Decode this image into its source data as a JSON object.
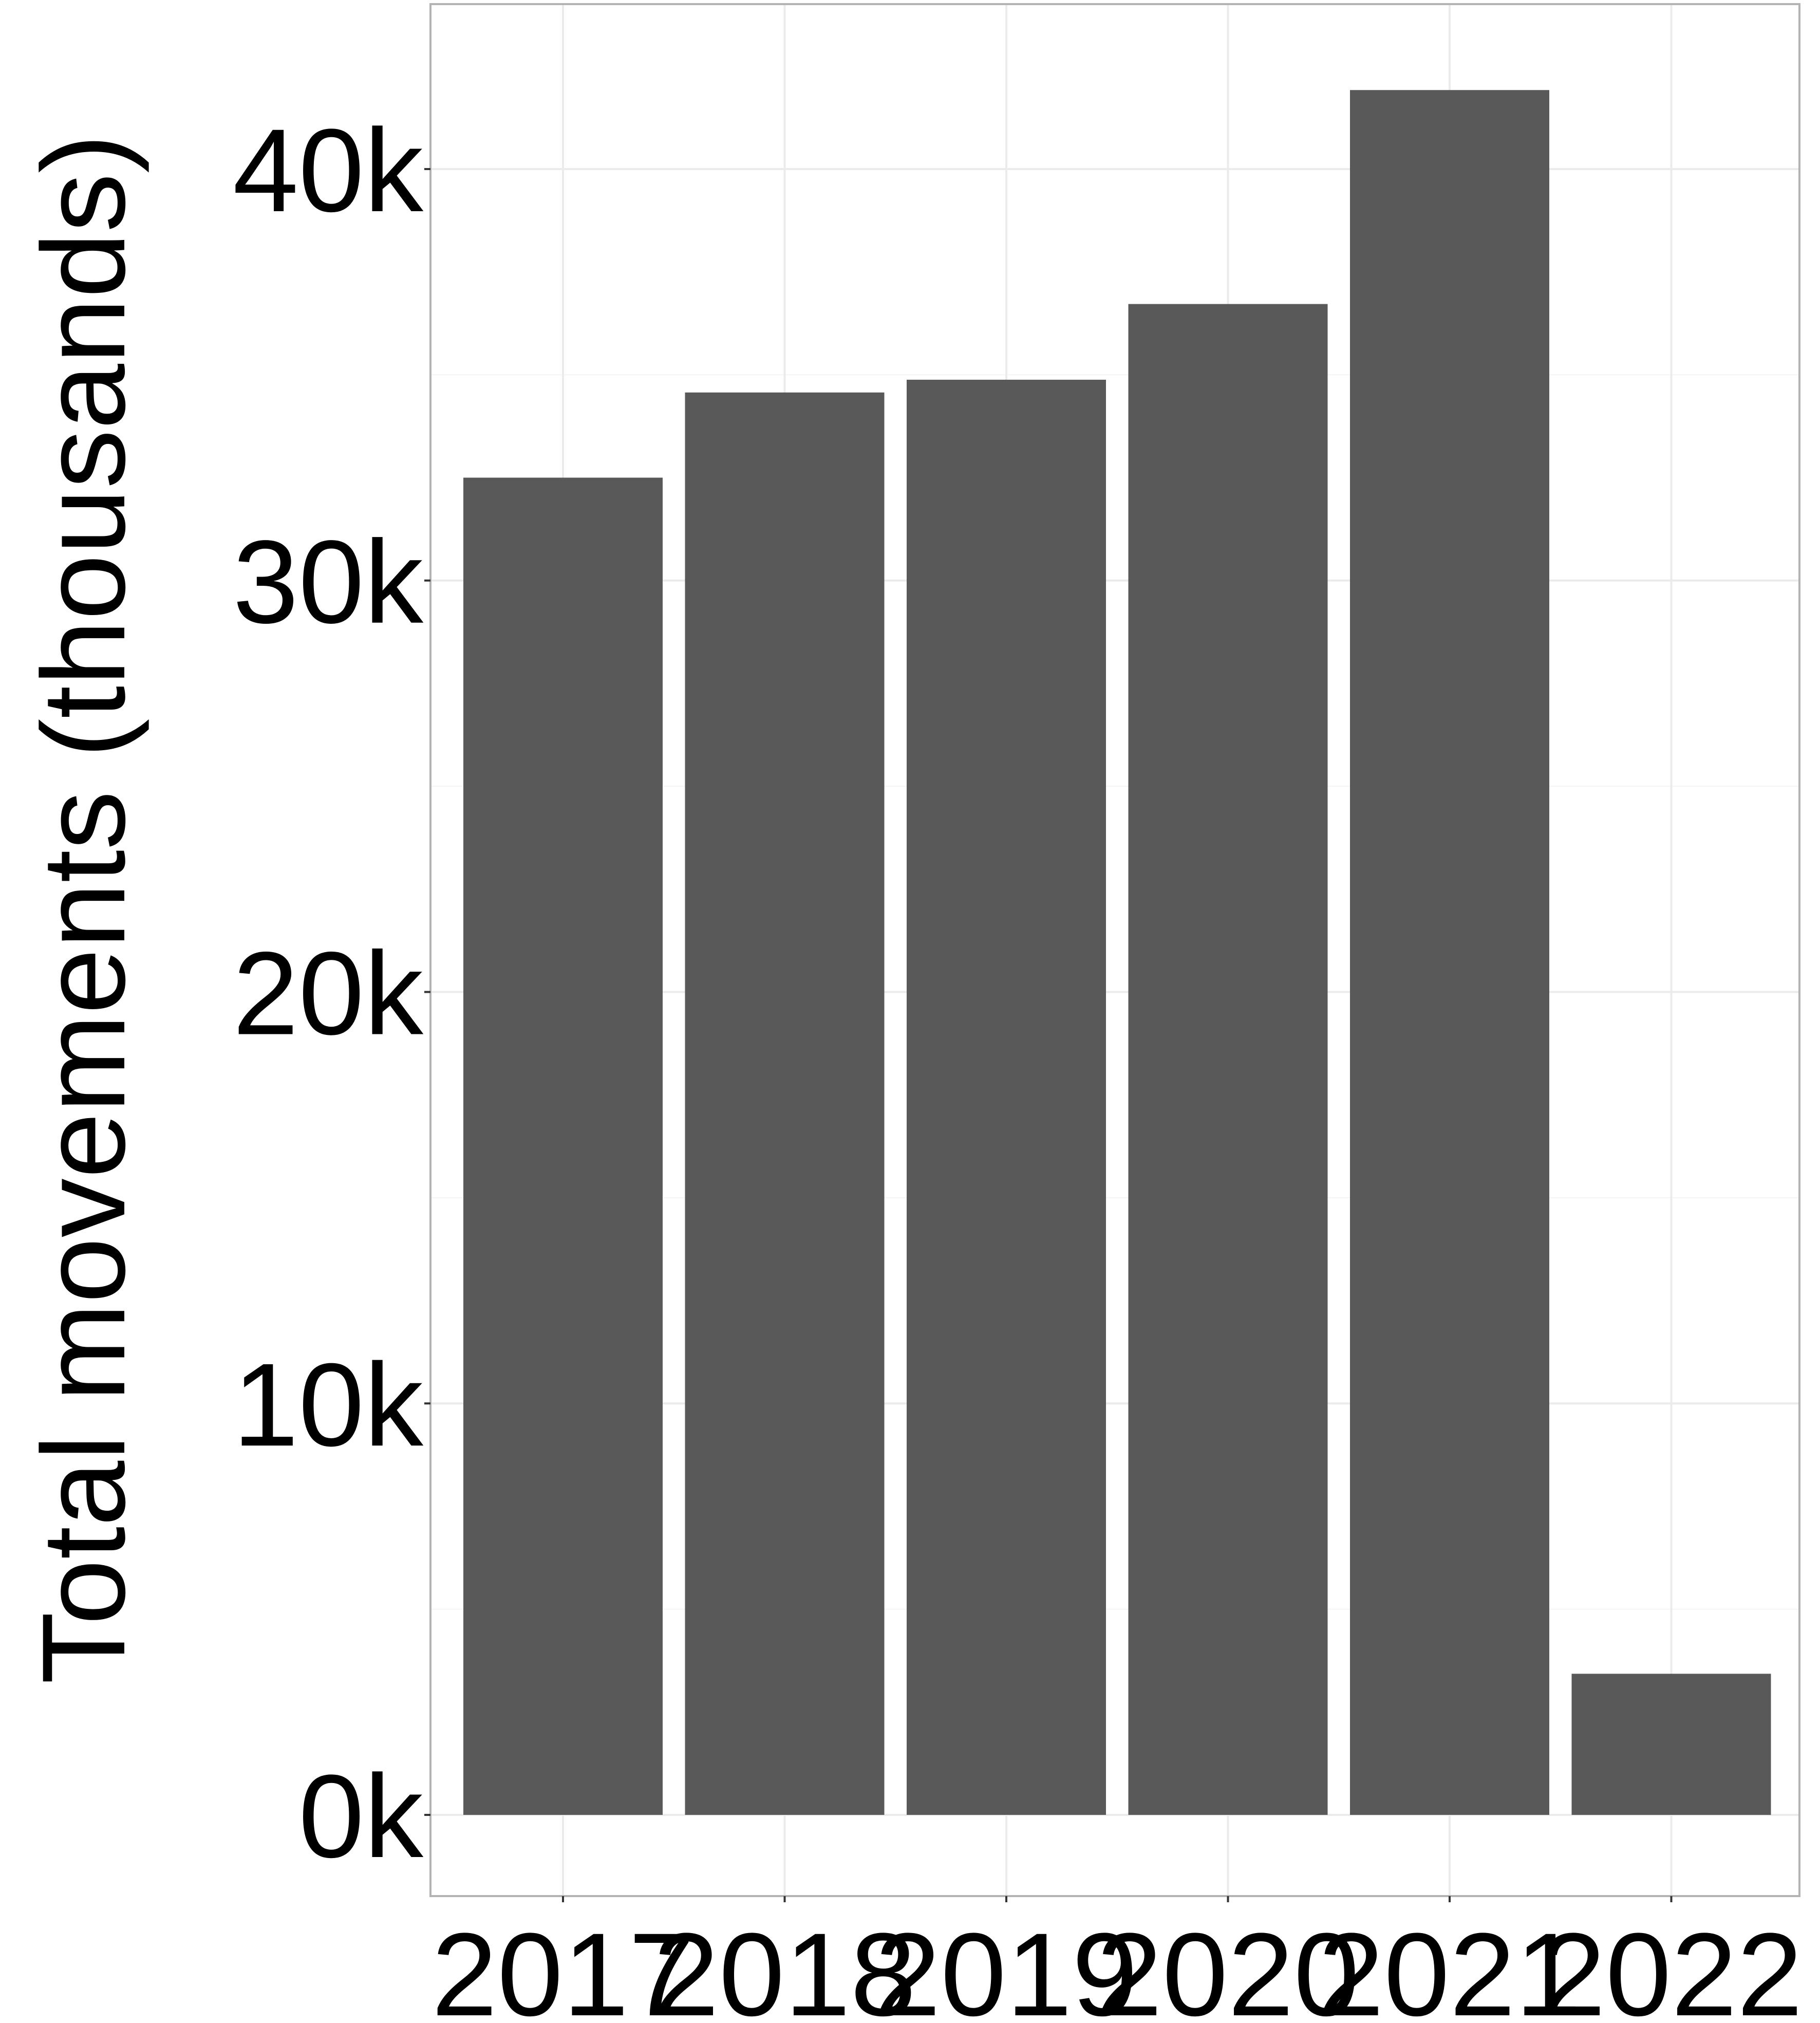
{
  "chart_data": {
    "type": "bar",
    "title": "",
    "xlabel": "",
    "ylabel": "Total movements (thousands)",
    "categories": [
      "2017",
      "2018",
      "2019",
      "2020",
      "2021",
      "2022"
    ],
    "values": [
      32500,
      34570,
      34880,
      36720,
      41920,
      3430
    ],
    "ylim": [
      -2000,
      44000
    ],
    "yticks": [
      0,
      10000,
      20000,
      30000,
      40000
    ],
    "ytick_labels": [
      "0k",
      "10k",
      "20k",
      "30k",
      "40k"
    ],
    "grid": true,
    "legend": "none",
    "colors": {
      "bar": "#595959",
      "panel_border": "#b3b3b3",
      "grid_major": "#ebebeb",
      "grid_minor": "#f5f5f5",
      "background": "#ffffff"
    }
  }
}
